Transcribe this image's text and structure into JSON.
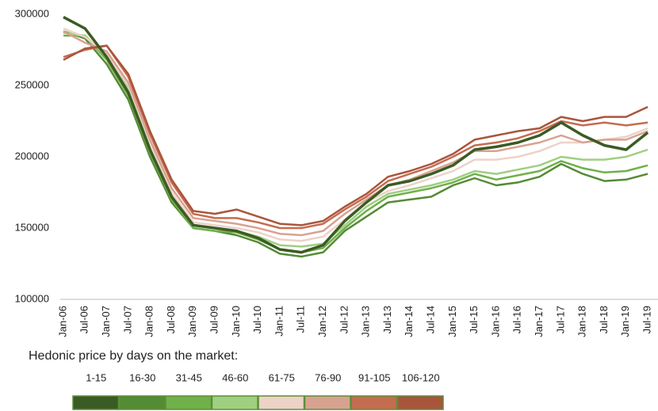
{
  "chart_data": {
    "type": "line",
    "categories": [
      "Jan-06",
      "Jul-06",
      "Jan-07",
      "Jul-07",
      "Jan-08",
      "Jul-08",
      "Jan-09",
      "Jul-09",
      "Jan-10",
      "Jul-10",
      "Jan-11",
      "Jul-11",
      "Jan-12",
      "Jul-12",
      "Jan-13",
      "Jul-13",
      "Jan-14",
      "Jul-14",
      "Jan-15",
      "Jul-15",
      "Jan-16",
      "Jul-16",
      "Jan-17",
      "Jul-17",
      "Jan-18",
      "Jul-18",
      "Jan-19",
      "Jul-19"
    ],
    "series": [
      {
        "name": "1-15",
        "color": "#3b5b24",
        "values": [
          298000,
          290000,
          270000,
          245000,
          205000,
          172000,
          152000,
          150000,
          148000,
          143000,
          135000,
          133000,
          138000,
          155000,
          168000,
          180000,
          183000,
          188000,
          194000,
          205000,
          207000,
          210000,
          215000,
          224000,
          215000,
          208000,
          205000,
          217000
        ]
      },
      {
        "name": "16-30",
        "color": "#548b35",
        "values": [
          288000,
          283000,
          265000,
          240000,
          200000,
          168000,
          150000,
          148000,
          145000,
          140000,
          132000,
          130000,
          133000,
          148000,
          158000,
          168000,
          170000,
          172000,
          180000,
          185000,
          180000,
          182000,
          186000,
          195000,
          188000,
          183000,
          184000,
          188000
        ]
      },
      {
        "name": "31-45",
        "color": "#70b04a",
        "values": [
          285000,
          285000,
          268000,
          243000,
          203000,
          170000,
          150000,
          148000,
          147000,
          142000,
          135000,
          133000,
          136000,
          150000,
          162000,
          172000,
          175000,
          178000,
          182000,
          188000,
          184000,
          187000,
          190000,
          197000,
          192000,
          189000,
          190000,
          194000
        ]
      },
      {
        "name": "46-60",
        "color": "#9fcf80",
        "values": [
          287000,
          285000,
          270000,
          248000,
          206000,
          172000,
          152000,
          150000,
          148000,
          144000,
          138000,
          137000,
          139000,
          152000,
          165000,
          174000,
          177000,
          180000,
          184000,
          190000,
          188000,
          191000,
          194000,
          200000,
          198000,
          198000,
          200000,
          205000
        ]
      },
      {
        "name": "61-75",
        "color": "#edd2c8",
        "values": [
          290000,
          284000,
          272000,
          250000,
          210000,
          175000,
          154000,
          152000,
          150000,
          147000,
          142000,
          141000,
          144000,
          156000,
          168000,
          176000,
          180000,
          185000,
          190000,
          198000,
          198000,
          200000,
          204000,
          210000,
          210000,
          212000,
          214000,
          220000
        ]
      },
      {
        "name": "76-90",
        "color": "#d8a291",
        "values": [
          288000,
          280000,
          274000,
          252000,
          212000,
          178000,
          157000,
          155000,
          153000,
          150000,
          146000,
          145000,
          148000,
          160000,
          170000,
          180000,
          184000,
          190000,
          196000,
          204000,
          204000,
          207000,
          210000,
          215000,
          210000,
          212000,
          212000,
          218000
        ]
      },
      {
        "name": "91-105",
        "color": "#c56c50",
        "values": [
          270000,
          275000,
          278000,
          256000,
          216000,
          182000,
          160000,
          157000,
          157000,
          154000,
          150000,
          150000,
          153000,
          163000,
          172000,
          183000,
          188000,
          193000,
          200000,
          208000,
          210000,
          213000,
          218000,
          225000,
          222000,
          224000,
          222000,
          224000
        ]
      },
      {
        "name": "106-120",
        "color": "#a9553c",
        "values": [
          268000,
          276000,
          278000,
          258000,
          218000,
          184000,
          162000,
          160000,
          163000,
          158000,
          153000,
          152000,
          155000,
          165000,
          174000,
          186000,
          190000,
          195000,
          202000,
          212000,
          215000,
          218000,
          220000,
          228000,
          225000,
          228000,
          228000,
          235000
        ]
      }
    ],
    "ylim": [
      100000,
      300000
    ],
    "yticks": [
      100000,
      150000,
      200000,
      250000,
      300000
    ],
    "legend_title": "Hedonic price by days on the market:"
  }
}
